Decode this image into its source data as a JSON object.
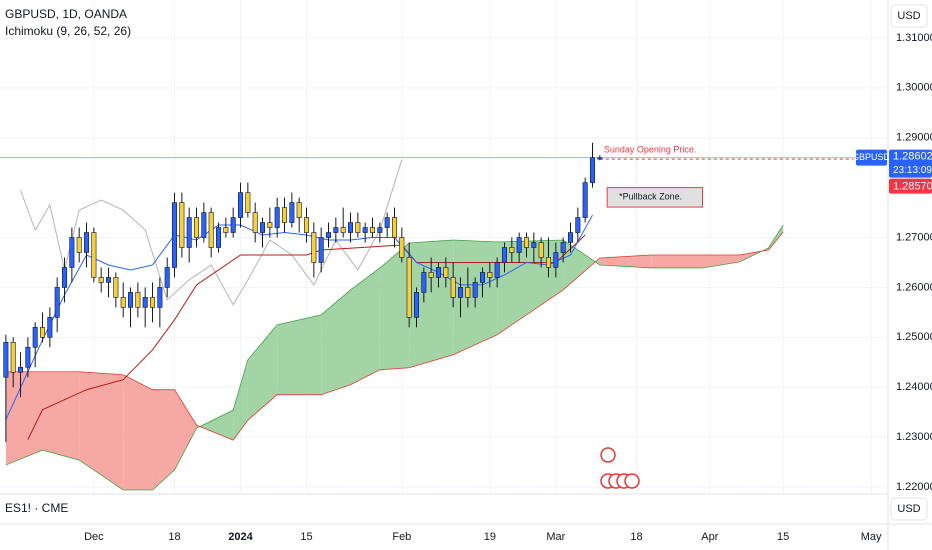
{
  "chart_data": {
    "type": "candlestick",
    "title": "GBPUSD, 1D, OANDA",
    "indicator": "Ichimoku (9, 26, 52, 26)",
    "currency": "USD",
    "lower_pane": "ES1! · CME",
    "up_color": "#2962ff",
    "down_color": "#f5d03a",
    "x": [
      -12,
      -11,
      -10,
      -9,
      -8,
      -7,
      -6,
      -5,
      -4,
      -3,
      -2,
      -1,
      0,
      1,
      2,
      3,
      4,
      5,
      6,
      7,
      8,
      9,
      10,
      11,
      12,
      13,
      14,
      15,
      16,
      17,
      18,
      19,
      20,
      21,
      22,
      23,
      24,
      25,
      26,
      27,
      28,
      29,
      30,
      31,
      32,
      33,
      34,
      35,
      36,
      37,
      38,
      39,
      40,
      41,
      42,
      43,
      44,
      45,
      46,
      47,
      48,
      49,
      50,
      51,
      52,
      53,
      54,
      55,
      56,
      57,
      58,
      59,
      60,
      61,
      62,
      63,
      64,
      65,
      66,
      67,
      68,
      69
    ],
    "open": [
      1.242,
      1.249,
      1.243,
      1.244,
      1.248,
      1.252,
      1.25,
      1.254,
      1.26,
      1.264,
      1.27,
      1.267,
      1.271,
      1.262,
      1.261,
      1.262,
      1.258,
      1.256,
      1.259,
      1.256,
      1.258,
      1.256,
      1.26,
      1.264,
      1.277,
      1.268,
      1.274,
      1.27,
      1.275,
      1.268,
      1.272,
      1.271,
      1.274,
      1.279,
      1.275,
      1.271,
      1.273,
      1.272,
      1.276,
      1.273,
      1.277,
      1.274,
      1.271,
      1.265,
      1.27,
      1.271,
      1.272,
      1.271,
      1.273,
      1.271,
      1.272,
      1.271,
      1.272,
      1.274,
      1.27,
      1.266,
      1.254,
      1.259,
      1.263,
      1.262,
      1.264,
      1.262,
      1.258,
      1.26,
      1.258,
      1.261,
      1.263,
      1.262,
      1.265,
      1.268,
      1.267,
      1.27,
      1.268,
      1.269,
      1.266,
      1.264,
      1.267,
      1.269,
      1.271,
      1.274,
      1.281,
      1.2857
    ],
    "high": [
      1.2505,
      1.25,
      1.247,
      1.25,
      1.253,
      1.255,
      1.256,
      1.262,
      1.266,
      1.272,
      1.272,
      1.273,
      1.272,
      1.264,
      1.264,
      1.263,
      1.261,
      1.26,
      1.261,
      1.26,
      1.261,
      1.262,
      1.266,
      1.279,
      1.279,
      1.276,
      1.276,
      1.277,
      1.276,
      1.273,
      1.274,
      1.276,
      1.281,
      1.281,
      1.277,
      1.274,
      1.276,
      1.278,
      1.278,
      1.279,
      1.278,
      1.276,
      1.273,
      1.272,
      1.273,
      1.274,
      1.276,
      1.275,
      1.275,
      1.273,
      1.274,
      1.273,
      1.275,
      1.276,
      1.272,
      1.269,
      1.26,
      1.264,
      1.266,
      1.265,
      1.266,
      1.265,
      1.262,
      1.264,
      1.262,
      1.264,
      1.265,
      1.266,
      1.269,
      1.27,
      1.271,
      1.271,
      1.271,
      1.27,
      1.27,
      1.269,
      1.27,
      1.273,
      1.276,
      1.282,
      1.289,
      1.2865
    ],
    "low": [
      1.229,
      1.24,
      1.238,
      1.242,
      1.244,
      1.249,
      1.248,
      1.251,
      1.257,
      1.261,
      1.265,
      1.264,
      1.261,
      1.259,
      1.258,
      1.256,
      1.254,
      1.252,
      1.254,
      1.252,
      1.253,
      1.252,
      1.258,
      1.262,
      1.266,
      1.265,
      1.268,
      1.269,
      1.266,
      1.267,
      1.27,
      1.27,
      1.272,
      1.274,
      1.269,
      1.268,
      1.27,
      1.27,
      1.271,
      1.272,
      1.271,
      1.269,
      1.262,
      1.263,
      1.268,
      1.269,
      1.27,
      1.269,
      1.27,
      1.269,
      1.27,
      1.269,
      1.27,
      1.268,
      1.265,
      1.252,
      1.252,
      1.257,
      1.259,
      1.26,
      1.26,
      1.256,
      1.254,
      1.256,
      1.256,
      1.258,
      1.26,
      1.26,
      1.263,
      1.265,
      1.265,
      1.266,
      1.265,
      1.264,
      1.262,
      1.262,
      1.265,
      1.267,
      1.269,
      1.273,
      1.28,
      1.2855
    ],
    "close": [
      1.249,
      1.243,
      1.244,
      1.248,
      1.252,
      1.25,
      1.254,
      1.26,
      1.264,
      1.27,
      1.267,
      1.271,
      1.262,
      1.261,
      1.262,
      1.258,
      1.256,
      1.259,
      1.256,
      1.258,
      1.256,
      1.26,
      1.264,
      1.277,
      1.268,
      1.274,
      1.27,
      1.275,
      1.268,
      1.272,
      1.271,
      1.274,
      1.279,
      1.275,
      1.271,
      1.273,
      1.272,
      1.276,
      1.273,
      1.277,
      1.274,
      1.271,
      1.265,
      1.27,
      1.271,
      1.272,
      1.271,
      1.273,
      1.271,
      1.272,
      1.271,
      1.272,
      1.274,
      1.27,
      1.266,
      1.254,
      1.259,
      1.263,
      1.262,
      1.264,
      1.262,
      1.258,
      1.26,
      1.258,
      1.261,
      1.263,
      1.262,
      1.265,
      1.268,
      1.267,
      1.27,
      1.268,
      1.269,
      1.266,
      1.264,
      1.267,
      1.269,
      1.271,
      1.274,
      1.281,
      1.286,
      1.286
    ],
    "conversion_line": {
      "color": "#2962ff",
      "x": [
        -12,
        -7,
        -4,
        -1,
        2,
        5,
        8,
        11,
        14,
        17,
        20,
        23,
        26,
        29,
        32,
        35,
        38,
        41,
        44,
        47,
        50,
        53,
        56,
        59,
        62,
        65,
        68
      ],
      "values": [
        1.2335,
        1.2495,
        1.2585,
        1.2665,
        1.2645,
        1.2635,
        1.2645,
        1.2705,
        1.2695,
        1.2725,
        1.2725,
        1.2705,
        1.271,
        1.2705,
        1.2695,
        1.2695,
        1.27,
        1.27,
        1.265,
        1.263,
        1.2605,
        1.2605,
        1.2625,
        1.265,
        1.2645,
        1.2665,
        1.2745
      ]
    },
    "base_line": {
      "color": "#b71c1c",
      "x": [
        -9,
        -7,
        -4,
        -1,
        4,
        8,
        11,
        14,
        17,
        20,
        29,
        31,
        42,
        44,
        63,
        67
      ],
      "values": [
        1.2295,
        1.2355,
        1.2375,
        1.2395,
        1.2415,
        1.2475,
        1.2535,
        1.2605,
        1.2635,
        1.2665,
        1.2665,
        1.2675,
        1.2685,
        1.265,
        1.265,
        1.2705
      ]
    },
    "lagging_span": {
      "color": "#b5b5b5",
      "x": [
        -10,
        -8,
        -6,
        -4,
        -2,
        1,
        4,
        7,
        10,
        13,
        16,
        19,
        21,
        24,
        27,
        30,
        33,
        36,
        39,
        42
      ],
      "values": [
        1.2795,
        1.2715,
        1.2765,
        1.2635,
        1.2755,
        1.2775,
        1.2755,
        1.2715,
        1.2575,
        1.2615,
        1.2645,
        1.2565,
        1.2615,
        1.2695,
        1.2665,
        1.2605,
        1.2695,
        1.2635,
        1.2715,
        1.2856
      ]
    },
    "cloud": {
      "up_color": "#8cc98f",
      "down_color": "#f4938d",
      "line_a_color": "#43a047",
      "line_b_color": "#e53935",
      "x": [
        -12,
        -7,
        -2,
        4,
        8,
        11,
        14,
        19,
        21,
        25,
        31,
        35,
        39,
        43,
        49,
        55,
        64,
        69,
        76,
        83,
        88,
        92,
        94
      ],
      "span_a": [
        1.2244,
        1.2274,
        1.2254,
        1.2194,
        1.2194,
        1.2234,
        1.2318,
        1.2354,
        1.2455,
        1.2525,
        1.2545,
        1.2595,
        1.2639,
        1.2689,
        1.2695,
        1.2691,
        1.2695,
        1.2645,
        1.2639,
        1.2639,
        1.2651,
        1.2679,
        1.2725
      ],
      "span_b": [
        1.2431,
        1.2431,
        1.2431,
        1.2425,
        1.2395,
        1.2395,
        1.2324,
        1.2294,
        1.2334,
        1.2385,
        1.2385,
        1.2405,
        1.2435,
        1.2439,
        1.2465,
        1.2505,
        1.2595,
        1.2659,
        1.2665,
        1.2665,
        1.2665,
        1.2675,
        1.2711
      ]
    },
    "xlim": [
      -12.8,
      108.3
    ],
    "xticks": [
      {
        "value": 0,
        "label": "Dec"
      },
      {
        "value": 11,
        "label": "18"
      },
      {
        "value": 20,
        "label": "2024"
      },
      {
        "value": 29,
        "label": "15"
      },
      {
        "value": 42,
        "label": "Feb"
      },
      {
        "value": 54,
        "label": "19"
      },
      {
        "value": 63,
        "label": "Mar"
      },
      {
        "value": 74,
        "label": "18"
      },
      {
        "value": 84,
        "label": "Apr"
      },
      {
        "value": 94,
        "label": "15"
      },
      {
        "value": 106,
        "label": "May"
      }
    ],
    "ylim": [
      1.2186,
      1.3176
    ],
    "yticks": [
      {
        "value": 1.31,
        "label": "1.31000"
      },
      {
        "value": 1.3,
        "label": "1.30000"
      },
      {
        "value": 1.29,
        "label": "1.29000"
      },
      {
        "value": 1.27,
        "label": "1.27000"
      },
      {
        "value": 1.26,
        "label": "1.26000"
      },
      {
        "value": 1.25,
        "label": "1.25000"
      },
      {
        "value": 1.24,
        "label": "1.24000"
      },
      {
        "value": 1.23,
        "label": "1.23000"
      },
      {
        "value": 1.22,
        "label": "1.22000"
      }
    ],
    "grid": true,
    "symbol": "GBPUSD",
    "last_price": 1.28602,
    "last_price_color": "#2962ff",
    "countdown": "23:13:09",
    "marked_price": {
      "value": 1.2857,
      "label": "1.28570"
    },
    "marked_price_color": "#f23645",
    "annotations": [
      {
        "text": "Sunday Opening Price.",
        "x": 69,
        "y": 1.2875,
        "color": "#f23645"
      },
      {
        "text": "*Pullback Zone.",
        "x": [
          70,
          83
        ],
        "y": [
          1.2761,
          1.28
        ],
        "color": "#f23645"
      }
    ]
  }
}
